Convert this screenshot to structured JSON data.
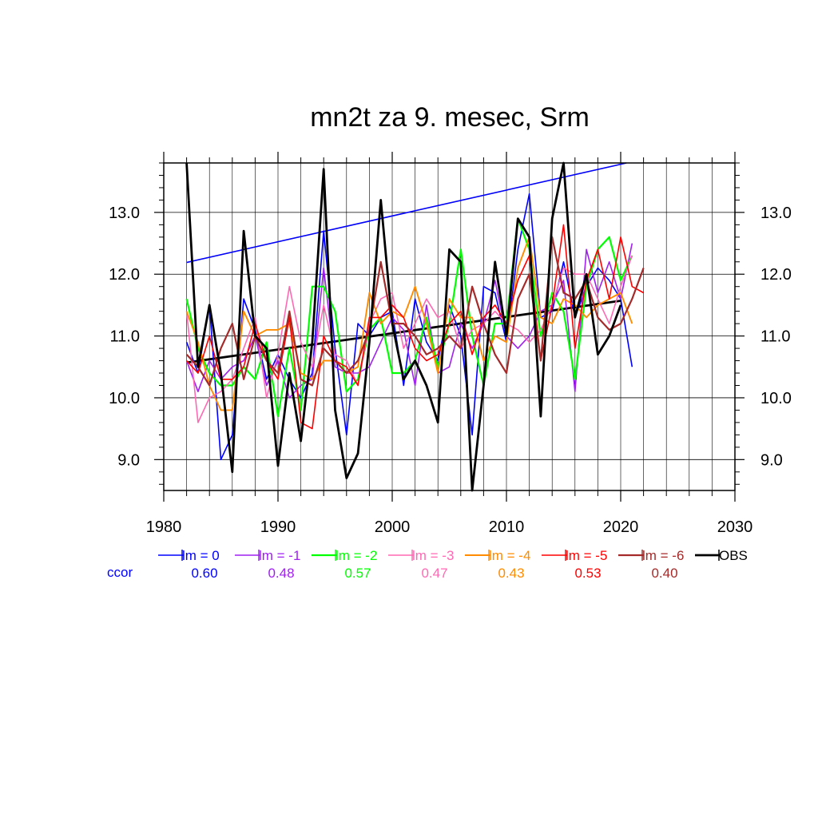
{
  "chart_data": {
    "type": "line",
    "title": "mn2t za 9. mesec, Srm",
    "xlim": [
      1980,
      2030
    ],
    "ylim": [
      8.5,
      13.8
    ],
    "x_ticks": [
      "1980",
      "1990",
      "2000",
      "2010",
      "2020",
      "2030"
    ],
    "y_ticks": [
      "9.0",
      "10.0",
      "11.0",
      "12.0",
      "13.0"
    ],
    "grid": true,
    "legend_position": "bottom",
    "ccor_label": "ccor",
    "x": [
      1982,
      1983,
      1984,
      1985,
      1986,
      1987,
      1988,
      1989,
      1990,
      1991,
      1992,
      1993,
      1994,
      1995,
      1996,
      1997,
      1998,
      1999,
      2000,
      2001,
      2002,
      2003,
      2004,
      2005,
      2006,
      2007,
      2008,
      2009,
      2010,
      2011,
      2012,
      2013,
      2014,
      2015,
      2016,
      2017,
      2018,
      2019,
      2020,
      2021,
      2022
    ],
    "series": [
      {
        "name": "lm = 0",
        "color": "#0000ff",
        "ccor": "0.60",
        "width": 1.6,
        "values": [
          10.9,
          10.4,
          11.5,
          9.0,
          9.4,
          11.6,
          11.1,
          10.3,
          10.7,
          10.3,
          10.0,
          10.4,
          12.7,
          10.8,
          9.4,
          11.2,
          11.0,
          11.3,
          11.4,
          10.2,
          11.6,
          10.9,
          10.6,
          11.5,
          11.0,
          9.4,
          11.8,
          11.7,
          10.9,
          12.4,
          13.3,
          11.3,
          11.4,
          12.2,
          11.3,
          11.8,
          12.1,
          11.9,
          11.6,
          10.5,
          null
        ]
      },
      {
        "name": "lm = -1",
        "color": "#a020f0",
        "ccor": "0.48",
        "width": 1.6,
        "values": [
          10.6,
          10.1,
          10.6,
          10.3,
          10.5,
          10.6,
          11.0,
          10.2,
          10.6,
          10.0,
          10.2,
          10.3,
          12.1,
          10.5,
          10.4,
          10.4,
          10.5,
          10.9,
          11.3,
          11.1,
          10.2,
          11.5,
          10.4,
          10.5,
          11.2,
          10.8,
          11.2,
          11.9,
          11.0,
          10.8,
          11.0,
          11.4,
          11.5,
          11.9,
          10.1,
          12.4,
          11.7,
          12.2,
          11.6,
          12.5,
          null
        ]
      },
      {
        "name": "lm = -2",
        "color": "#00ff00",
        "ccor": "0.57",
        "width": 2.2,
        "values": [
          11.6,
          10.8,
          10.4,
          10.2,
          10.2,
          10.5,
          10.3,
          10.9,
          9.7,
          10.8,
          9.8,
          11.8,
          11.8,
          11.4,
          10.1,
          10.3,
          11.1,
          11.3,
          10.4,
          10.4,
          10.6,
          11.3,
          10.5,
          11.2,
          12.4,
          11.0,
          10.2,
          11.2,
          11.2,
          12.9,
          12.4,
          11.0,
          11.7,
          11.4,
          10.3,
          11.8,
          12.4,
          12.6,
          11.9,
          12.3,
          null
        ]
      },
      {
        "name": "lm = -3",
        "color": "#ff69b4",
        "ccor": "0.47",
        "width": 1.6,
        "values": [
          11.4,
          9.6,
          10.0,
          10.1,
          10.3,
          10.8,
          11.3,
          10.0,
          10.7,
          11.8,
          10.9,
          10.5,
          11.5,
          10.7,
          10.6,
          10.2,
          11.2,
          11.6,
          11.7,
          10.8,
          11.2,
          11.6,
          11.3,
          11.4,
          10.8,
          11.1,
          11.2,
          11.4,
          11.2,
          11.1,
          10.9,
          11.1,
          11.5,
          12.1,
          12.0,
          12.0,
          11.6,
          11.2,
          11.8,
          12.3,
          null
        ]
      },
      {
        "name": "lm = -4",
        "color": "#ff8c00",
        "ccor": "0.43",
        "width": 1.9,
        "values": [
          11.4,
          10.9,
          10.2,
          9.8,
          9.8,
          11.4,
          11.0,
          11.1,
          11.1,
          11.2,
          10.4,
          10.3,
          10.6,
          10.6,
          10.4,
          10.5,
          11.7,
          11.2,
          11.4,
          11.3,
          11.8,
          11.2,
          10.4,
          11.6,
          11.3,
          11.3,
          10.6,
          11.0,
          10.9,
          12.1,
          12.6,
          11.3,
          11.2,
          11.6,
          11.5,
          11.3,
          11.5,
          11.6,
          11.7,
          11.2,
          null
        ]
      },
      {
        "name": "lm = -5",
        "color": "#ff0000",
        "ccor": "0.53",
        "width": 1.6,
        "values": [
          10.6,
          10.4,
          11.0,
          10.3,
          10.3,
          10.5,
          11.2,
          10.6,
          10.3,
          11.3,
          9.6,
          9.5,
          11.0,
          10.6,
          10.5,
          10.2,
          11.3,
          11.3,
          11.5,
          11.3,
          10.8,
          10.6,
          10.7,
          11.2,
          11.4,
          10.7,
          11.3,
          11.5,
          11.2,
          11.9,
          12.3,
          10.6,
          11.5,
          12.8,
          10.8,
          11.9,
          12.4,
          11.6,
          12.6,
          11.8,
          11.7
        ]
      },
      {
        "name": "lm = -6",
        "color": "#a52a2a",
        "ccor": "0.40",
        "width": 2.2,
        "values": [
          10.7,
          10.5,
          10.2,
          10.8,
          11.2,
          10.3,
          11.0,
          10.6,
          10.4,
          11.4,
          10.3,
          10.2,
          10.8,
          10.6,
          10.4,
          10.6,
          11.1,
          12.2,
          11.2,
          11.2,
          11.0,
          10.7,
          10.8,
          11.0,
          10.8,
          11.8,
          11.2,
          10.7,
          10.4,
          11.6,
          12.0,
          10.6,
          12.6,
          11.7,
          11.6,
          11.9,
          11.3,
          11.1,
          11.2,
          11.6,
          12.1
        ]
      },
      {
        "name": "OBS",
        "color": "#000000",
        "ccor": null,
        "width": 2.8,
        "values": [
          13.8,
          10.5,
          11.5,
          10.4,
          8.8,
          12.7,
          11.0,
          10.8,
          8.9,
          10.4,
          9.3,
          10.9,
          13.7,
          9.8,
          8.7,
          9.1,
          10.9,
          13.2,
          11.2,
          10.3,
          10.6,
          10.2,
          9.6,
          12.4,
          12.2,
          8.5,
          10.2,
          12.2,
          11.0,
          12.9,
          12.6,
          9.7,
          12.9,
          13.8,
          11.3,
          12.0,
          10.7,
          11.0,
          11.5,
          null,
          null
        ]
      }
    ],
    "trend_lines": [
      {
        "color": "#0000ff",
        "width": 1.6,
        "x": [
          1982,
          2020.5
        ],
        "y": [
          12.19,
          13.8
        ]
      },
      {
        "color": "#000000",
        "width": 2.8,
        "x": [
          1982,
          2020
        ],
        "y": [
          10.57,
          11.57
        ]
      }
    ]
  }
}
